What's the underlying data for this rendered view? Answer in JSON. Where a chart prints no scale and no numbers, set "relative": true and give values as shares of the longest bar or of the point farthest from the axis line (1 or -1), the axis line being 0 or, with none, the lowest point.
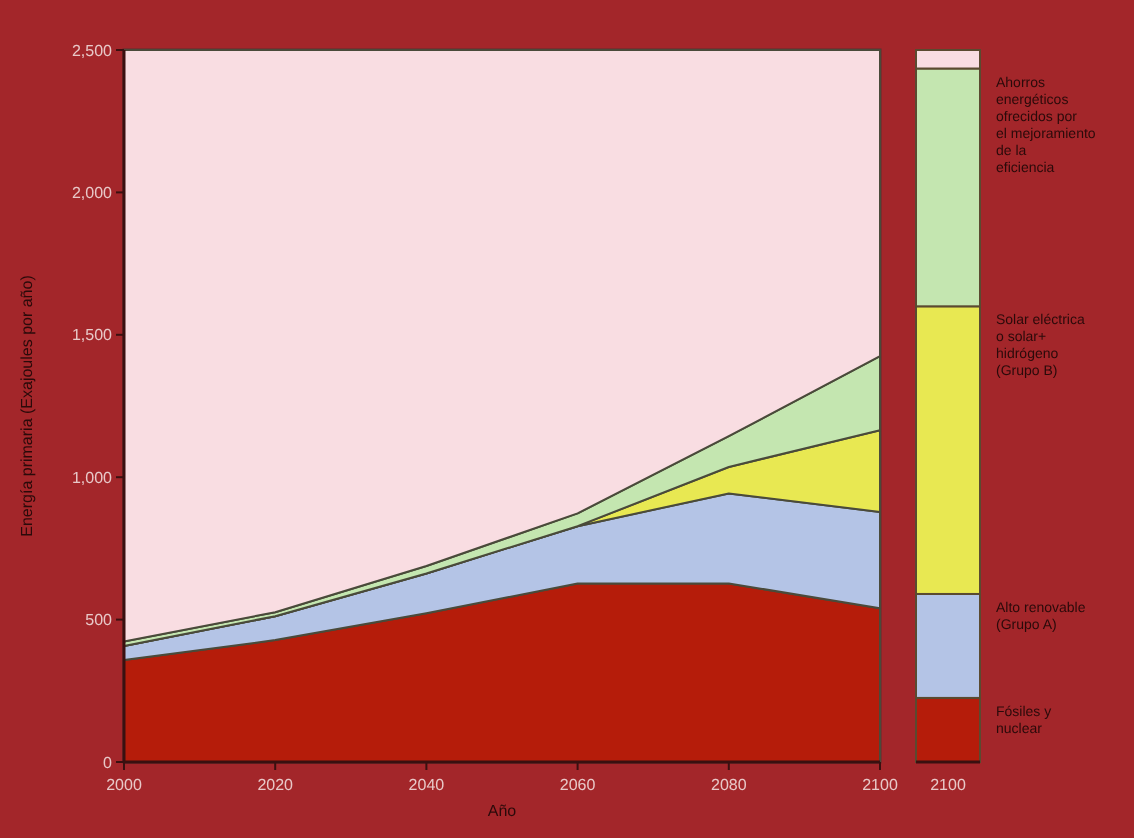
{
  "chart_data": [
    {
      "type": "area",
      "stacked": true,
      "xlabel": "Año",
      "ylabel": "Energía primaria (Exajoules por año)",
      "x": [
        2000,
        2020,
        2040,
        2060,
        2080,
        2100
      ],
      "xlim": [
        2000,
        2100
      ],
      "xticks": [
        2000,
        2020,
        2040,
        2060,
        2080,
        2100
      ],
      "ylim": [
        0,
        2500
      ],
      "yticks": [
        0,
        500,
        {
          "value": 1000,
          "label": "1,000"
        },
        {
          "value": 1500,
          "label": "1,500"
        },
        {
          "value": 2000,
          "label": "2,000"
        },
        {
          "value": 2500,
          "label": "2,500"
        }
      ],
      "grid": false,
      "series": [
        {
          "color": "#b51c0a",
          "values": [
            358,
            428,
            522,
            627,
            627,
            540
          ]
        },
        {
          "color": "#b4c4e6",
          "values": [
            49,
            84,
            140,
            201,
            316,
            338
          ]
        },
        {
          "color": "#e8e852",
          "values": [
            0,
            0,
            0,
            0,
            93,
            287
          ]
        },
        {
          "color": "#c4e6b0",
          "values": [
            16,
            14,
            26,
            45,
            108,
            260
          ]
        },
        {
          "color": "#f9dde2",
          "values": [
            2077,
            1974,
            1812,
            1627,
            1356,
            1075
          ]
        }
      ]
    },
    {
      "type": "bar",
      "stacked": true,
      "relative": true,
      "categories": [
        "2100"
      ],
      "legend": "right",
      "series": [
        {
          "name": "Fósiles y nuclear",
          "color": "#b51c0a",
          "values": [
            0.09
          ]
        },
        {
          "name": "Alto renovable (Grupo A)",
          "color": "#b4c4e6",
          "values": [
            0.146
          ]
        },
        {
          "name": "Solar eléctrica o solar+ hidrógeno (Grupo B)",
          "color": "#e8e852",
          "values": [
            0.404
          ]
        },
        {
          "name": "Ahorros energéticos ofrecidos por el mejoramiento de la eficiencia",
          "color": "#c4e6b0",
          "values": [
            0.334
          ]
        },
        {
          "color": "#f9dde2",
          "values": [
            0.026
          ]
        }
      ]
    }
  ]
}
